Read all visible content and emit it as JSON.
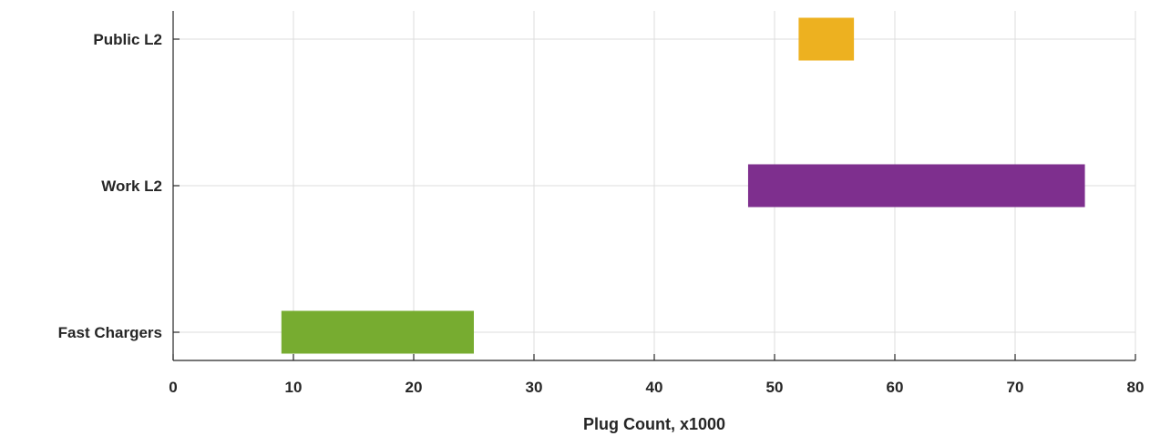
{
  "chart_data": {
    "type": "bar",
    "orientation": "horizontal",
    "categories": [
      "Public L2",
      "Work L2",
      "Fast Chargers"
    ],
    "ranges": [
      {
        "category": "Public L2",
        "start": 52,
        "end": 56.6,
        "color": "#EDB120"
      },
      {
        "category": "Work L2",
        "start": 47.8,
        "end": 75.8,
        "color": "#7E2F8E"
      },
      {
        "category": "Fast Chargers",
        "start": 9,
        "end": 25,
        "color": "#77AC30"
      }
    ],
    "xlabel": "Plug Count, x1000",
    "ylabel": "",
    "xlim": [
      0,
      80
    ],
    "xticks": [
      0,
      10,
      20,
      30,
      40,
      50,
      60,
      70,
      80
    ],
    "xtick_labels": [
      "0",
      "10",
      "20",
      "30",
      "40",
      "50",
      "60",
      "70",
      "80"
    ],
    "grid": true,
    "legend": "none"
  }
}
